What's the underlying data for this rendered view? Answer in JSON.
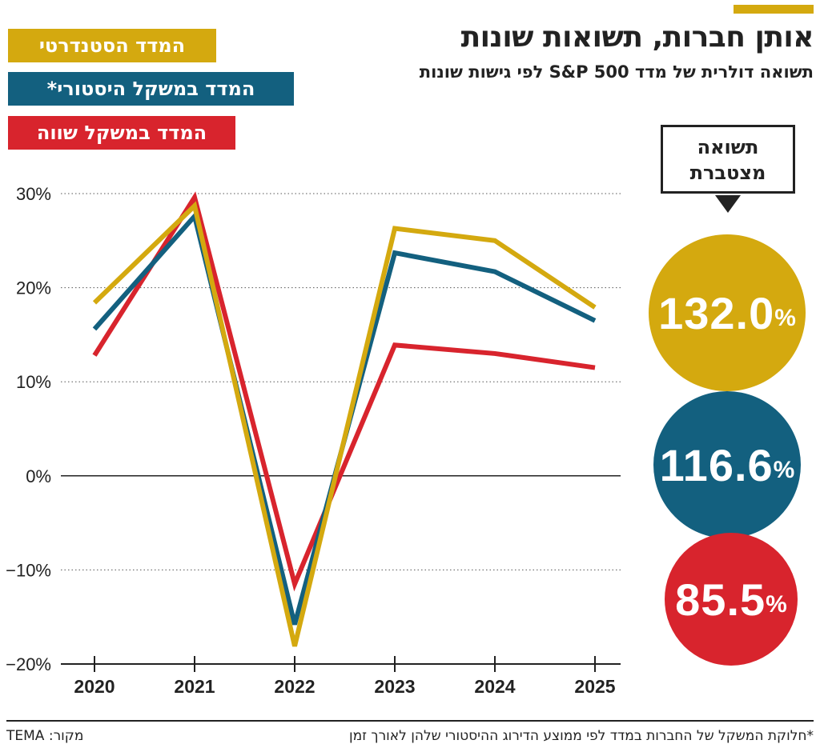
{
  "header": {
    "title": "אותן חברות, תשואות שונות",
    "subtitle": "תשואה דולרית של מדד S&P 500 לפי גישות שונות"
  },
  "legend": [
    {
      "label": "המדד הסטנדרטי",
      "color": "#d4a90f"
    },
    {
      "label": "המדד במשקל היסטורי*",
      "color": "#13607f"
    },
    {
      "label": "המדד במשקל שווה",
      "color": "#d8242d"
    }
  ],
  "cumulative": {
    "label_line1": "תשואה",
    "label_line2": "מצטברת",
    "values": [
      {
        "value": "132.0",
        "unit": "%",
        "color": "#d4a90f"
      },
      {
        "value": "116.6",
        "unit": "%",
        "color": "#13607f"
      },
      {
        "value": "85.5",
        "unit": "%",
        "color": "#d8242d"
      }
    ]
  },
  "chart_data": {
    "type": "line",
    "x": [
      "2020",
      "2021",
      "2022",
      "2023",
      "2024",
      "2025"
    ],
    "yticks": [
      "30%",
      "20%",
      "10%",
      "0%",
      "−10%",
      "−20%"
    ],
    "ylim": [
      -20,
      30
    ],
    "grid": true,
    "series": [
      {
        "name": "המדד הסטנדרטי",
        "color": "#d4a90f",
        "values": [
          18.4,
          28.7,
          -18.1,
          26.3,
          25.0,
          17.9
        ]
      },
      {
        "name": "המדד במשקל היסטורי*",
        "color": "#13607f",
        "values": [
          15.6,
          27.6,
          -15.8,
          23.7,
          21.7,
          16.5
        ]
      },
      {
        "name": "המדד במשקל שווה",
        "color": "#d8242d",
        "values": [
          12.8,
          29.6,
          -11.5,
          13.9,
          13.0,
          11.5
        ]
      }
    ]
  },
  "footer": {
    "footnote": "*חלוקת המשקל של החברות במדד לפי ממוצע הדירוג ההיסטורי שלהן לאורך זמן",
    "source": "מקור: TEMA"
  }
}
